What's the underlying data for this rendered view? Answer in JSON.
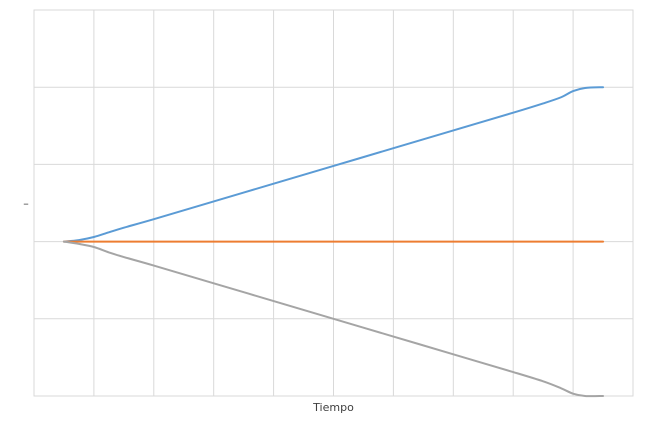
{
  "chart_data": {
    "type": "line",
    "title": "",
    "xlabel": "Tiempo",
    "ylabel": "–",
    "xlim": [
      0,
      10
    ],
    "ylim": [
      -2,
      3
    ],
    "grid": true,
    "legend": "none",
    "series": [
      {
        "color": "#5b9bd5",
        "x": [
          0.5,
          0.75,
          1.0,
          1.25,
          1.5,
          2.0,
          3.0,
          4.0,
          5.0,
          6.0,
          7.0,
          8.0,
          8.5,
          8.8,
          9.0,
          9.2,
          9.5
        ],
        "y": [
          0.0,
          0.02,
          0.06,
          0.12,
          0.18,
          0.29,
          0.52,
          0.75,
          0.98,
          1.21,
          1.44,
          1.67,
          1.79,
          1.87,
          1.95,
          1.99,
          2.0
        ]
      },
      {
        "color": "#ed7d31",
        "x": [
          0.5,
          9.5
        ],
        "y": [
          0.0,
          0.0
        ]
      },
      {
        "color": "#a5a5a5",
        "x": [
          0.5,
          0.75,
          1.0,
          1.25,
          1.5,
          2.0,
          3.0,
          4.0,
          5.0,
          6.0,
          7.0,
          8.0,
          8.5,
          8.8,
          9.0,
          9.2,
          9.5
        ],
        "y": [
          0.0,
          -0.03,
          -0.07,
          -0.14,
          -0.2,
          -0.31,
          -0.54,
          -0.77,
          -1.0,
          -1.23,
          -1.46,
          -1.69,
          -1.81,
          -1.9,
          -1.97,
          -2.0,
          -2.0
        ]
      }
    ]
  }
}
